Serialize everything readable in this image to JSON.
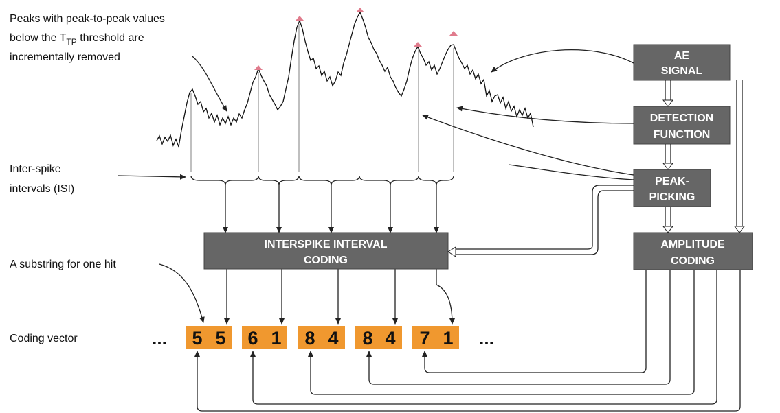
{
  "annotations": {
    "peaks_note": [
      "Peaks with peak-to-peak values",
      {
        "before": "below the T",
        "sub": "TP",
        "after": " threshold are"
      },
      "incrementally removed"
    ],
    "isi_label": [
      "Inter-spike",
      "intervals (ISI)"
    ],
    "substring_label": "A substring for one hit",
    "coding_vector_label": "Coding vector"
  },
  "blocks": {
    "ae_signal": [
      "AE",
      "SIGNAL"
    ],
    "detection_function": [
      "DETECTION",
      "FUNCTION"
    ],
    "peak_picking": [
      "PEAK-",
      "PICKING"
    ],
    "amplitude_coding": [
      "AMPLITUDE",
      "CODING"
    ],
    "isi_coding": [
      "INTERSPIKE INTERVAL",
      "CODING"
    ]
  },
  "coding_vector": {
    "ellipsis_start": "...",
    "substrings": [
      [
        "5",
        "5"
      ],
      [
        "6",
        "1"
      ],
      [
        "8",
        "4"
      ],
      [
        "8",
        "4"
      ],
      [
        "7",
        "1"
      ]
    ],
    "ellipsis_end": "..."
  }
}
